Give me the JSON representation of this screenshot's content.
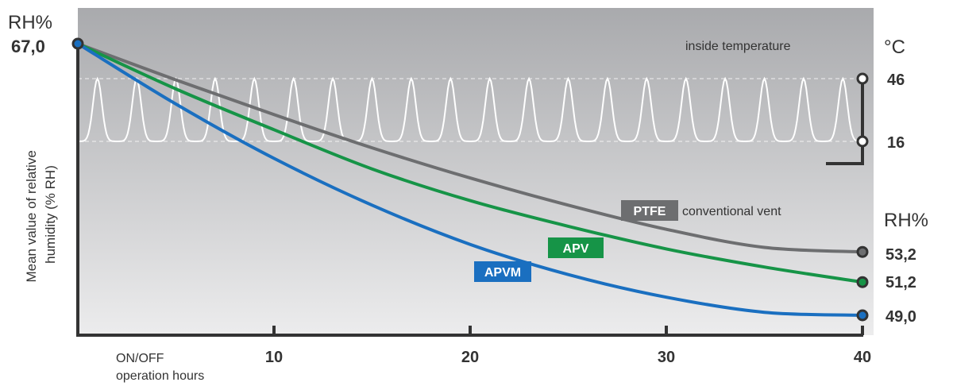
{
  "chart_data": {
    "type": "line",
    "left_axis": {
      "unit": "RH%",
      "start_value": "67,0"
    },
    "ylabel": [
      "Mean value of relative",
      "humidity (% RH)"
    ],
    "xlabel": [
      "ON/OFF",
      "operation hours"
    ],
    "x_ticks": [
      10,
      20,
      30,
      40
    ],
    "xlim": [
      0,
      40
    ],
    "ylim": [
      47,
      69
    ],
    "temperature": {
      "label": "inside temperature",
      "unit": "°C",
      "max": "46",
      "min": "16",
      "cycles": 20,
      "color": "#ffffff"
    },
    "right_axis": {
      "unit": "RH%",
      "values": [
        "53,2",
        "51,2",
        "49,0"
      ]
    },
    "series": [
      {
        "name": "PTFE",
        "suffix": "conventional vent",
        "color": "#6d6e70",
        "x": [
          0,
          5,
          10,
          15,
          20,
          25,
          30,
          35,
          40
        ],
        "y": [
          67.0,
          64.6,
          62.3,
          60.1,
          58.1,
          56.3,
          54.7,
          53.5,
          53.2
        ]
      },
      {
        "name": "APV",
        "color": "#169447",
        "x": [
          0,
          5,
          10,
          15,
          20,
          25,
          30,
          35,
          40
        ],
        "y": [
          67.0,
          64.0,
          61.3,
          58.7,
          56.6,
          54.9,
          53.4,
          52.2,
          51.2
        ]
      },
      {
        "name": "APVM",
        "color": "#1a6fc0",
        "x": [
          0,
          5,
          10,
          15,
          20,
          25,
          30,
          35,
          40
        ],
        "y": [
          67.0,
          63.0,
          59.4,
          56.3,
          53.7,
          51.7,
          50.2,
          49.2,
          49.0
        ]
      }
    ],
    "colors": {
      "background_top": "#a9aaad",
      "background_bottom": "#ececed",
      "axis": "#333333"
    }
  }
}
